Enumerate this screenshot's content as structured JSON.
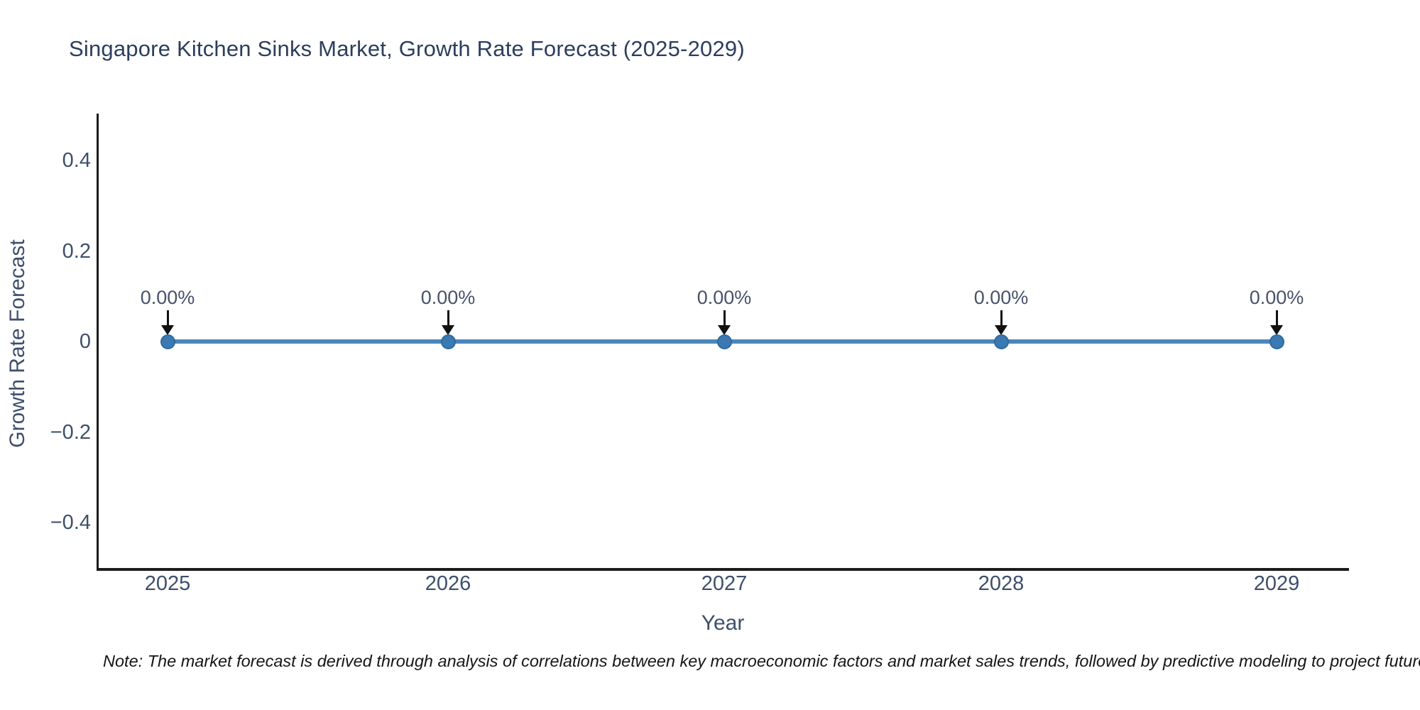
{
  "note": "Note: The market forecast is derived through analysis of correlations between key macroeconomic factors and market sales trends, followed by predictive modeling to project future sales",
  "chart_data": {
    "type": "line",
    "title": "Singapore Kitchen Sinks Market, Growth Rate Forecast (2025-2029)",
    "xlabel": "Year",
    "ylabel": "Growth Rate Forecast",
    "x": [
      2025,
      2026,
      2027,
      2028,
      2029
    ],
    "series": [
      {
        "name": "Growth Rate Forecast",
        "values": [
          0,
          0,
          0,
          0,
          0
        ]
      }
    ],
    "point_labels": [
      "0.00%",
      "0.00%",
      "0.00%",
      "0.00%",
      "0.00%"
    ],
    "xtick_labels": [
      "2025",
      "2026",
      "2027",
      "2028",
      "2029"
    ],
    "yticks": [
      0.4,
      0.2,
      0,
      -0.2,
      -0.4
    ],
    "ytick_labels": [
      "0.4",
      "0.2",
      "0",
      "−0.2",
      "−0.4"
    ],
    "ylim": [
      -0.5,
      0.5
    ],
    "grid": false,
    "legend_position": "none",
    "colors": {
      "line": "#4a86ba",
      "marker_fill": "#3b79b2",
      "marker_edge": "#2e6aa0",
      "arrow": "#111111",
      "title": "#2c3e5d",
      "tick_text": "#3e4f6b",
      "axis_line": "#1c1c1c",
      "background": "#ffffff"
    }
  }
}
